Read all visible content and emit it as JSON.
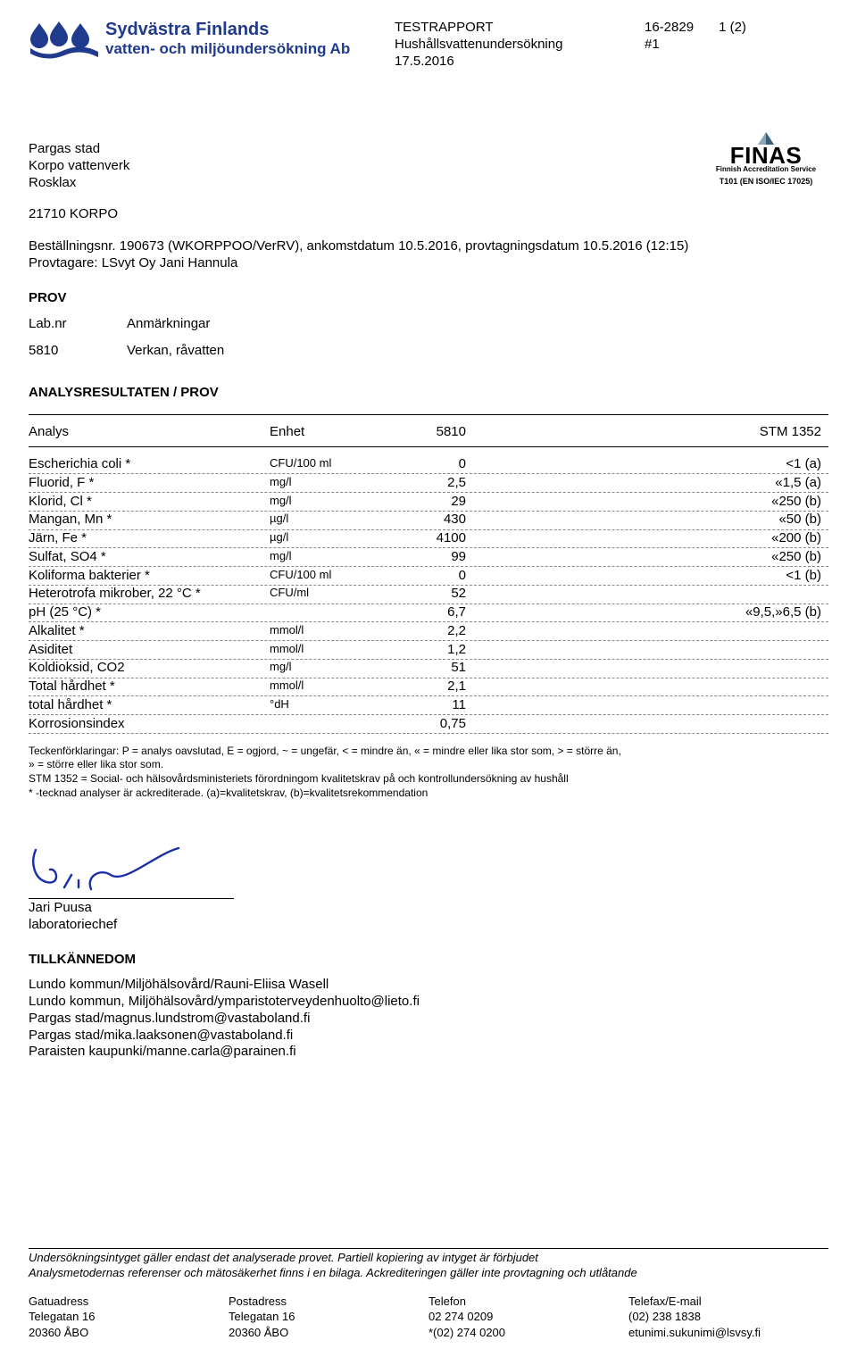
{
  "header": {
    "brand_line1": "Sydvästra Finlands",
    "brand_line2": "vatten- och miljöundersökning Ab",
    "center_line1": "TESTRAPPORT",
    "center_line2": "Hushållsvattenundersökning",
    "center_line3": "17.5.2016",
    "report_no": "16-2829",
    "sub_no": "#1",
    "page": "1 (2)"
  },
  "address": {
    "l1": "Pargas stad",
    "l2": "Korpo vattenverk",
    "l3": "Rosklax",
    "code": "21710 KORPO"
  },
  "finas": {
    "word": "FINAS",
    "sub": "Finnish Accreditation Service",
    "code": "T101 (EN ISO/IEC 17025)"
  },
  "order": {
    "line1": "Beställningsnr. 190673 (WKORPPOO/VerRV), ankomstdatum 10.5.2016, provtagningsdatum 10.5.2016 (12:15)",
    "line2": "Provtagare: LSvyt Oy Jani Hannula"
  },
  "prov": {
    "title": "PROV",
    "col1": "Lab.nr",
    "col2": "Anmärkningar",
    "row_labnr": "5810",
    "row_anm": "Verkan, råvatten"
  },
  "results": {
    "title": "ANALYSRESULTATEN / PROV",
    "head": {
      "analys": "Analys",
      "enhet": "Enhet",
      "val": "5810",
      "stm": "STM 1352"
    },
    "rows": [
      {
        "a": "Escherichia coli *",
        "e": "CFU/100 ml",
        "v": "0",
        "s": "<1 (a)"
      },
      {
        "a": "Fluorid, F *",
        "e": "mg/l",
        "v": "2,5",
        "s": "«1,5 (a)"
      },
      {
        "a": "Klorid, Cl *",
        "e": "mg/l",
        "v": "29",
        "s": "«250 (b)"
      },
      {
        "a": "Mangan, Mn *",
        "e": "µg/l",
        "v": "430",
        "s": "«50 (b)"
      },
      {
        "a": "Järn, Fe *",
        "e": "µg/l",
        "v": "4100",
        "s": "«200 (b)"
      },
      {
        "a": "Sulfat, SO4 *",
        "e": "mg/l",
        "v": "99",
        "s": "«250 (b)"
      },
      {
        "a": "Koliforma bakterier *",
        "e": "CFU/100 ml",
        "v": "0",
        "s": "<1 (b)"
      },
      {
        "a": "Heterotrofa mikrober, 22 °C *",
        "e": "CFU/ml",
        "v": "52",
        "s": ""
      },
      {
        "a": "pH (25 °C) *",
        "e": "",
        "v": "6,7",
        "s": "«9,5,»6,5 (b)"
      },
      {
        "a": "Alkalitet *",
        "e": "mmol/l",
        "v": "2,2",
        "s": ""
      },
      {
        "a": "Asiditet",
        "e": "mmol/l",
        "v": "1,2",
        "s": ""
      },
      {
        "a": "Koldioksid, CO2",
        "e": "mg/l",
        "v": "51",
        "s": ""
      },
      {
        "a": "Total hårdhet *",
        "e": "mmol/l",
        "v": "2,1",
        "s": ""
      },
      {
        "a": " total hårdhet *",
        "e": "°dH",
        "v": "11",
        "s": ""
      },
      {
        "a": "Korrosionsindex",
        "e": "",
        "v": "0,75",
        "s": ""
      }
    ]
  },
  "legend": {
    "l1": "Teckenförklaringar: P = analys oavslutad, E = ogjord, ~ = ungefär, < = mindre än, « = mindre eller lika stor som, > = större än,",
    "l2": "» = större eller lika stor som.",
    "l3": "STM 1352 = Social- och hälsovårdsministeriets förordningom kvalitetskrav på och kontrollundersökning av hushåll",
    "l4": "* -tecknad analyser är ackrediterade. (a)=kvalitetskrav, (b)=kvalitetsrekommendation"
  },
  "signature": {
    "name": "Jari Puusa",
    "title": "laboratoriechef"
  },
  "tk": {
    "title": "TILLKÄNNEDOM",
    "lines": [
      "Lundo kommun/Miljöhälsovård/Rauni-Eliisa Wasell",
      "Lundo kommun, Miljöhälsovård/ymparistoterveydenhuolto@lieto.fi",
      "Pargas stad/magnus.lundstrom@vastaboland.fi",
      "Pargas stad/mika.laaksonen@vastaboland.fi",
      "Paraisten kaupunki/manne.carla@parainen.fi"
    ]
  },
  "footer_note": {
    "l1": "Undersökningsintyget gäller endast det analyserade provet. Partiell kopiering av intyget är förbjudet",
    "l2": "Analysmetodernas referenser och mätosäkerhet finns i en bilaga. Ackrediteringen gäller inte provtagning och utlåtande"
  },
  "footer": {
    "c1": {
      "h": "Gatuadress",
      "l1": "Telegatan 16",
      "l2": "20360 ÅBO"
    },
    "c2": {
      "h": "Postadress",
      "l1": "Telegatan 16",
      "l2": "20360 ÅBO"
    },
    "c3": {
      "h": "Telefon",
      "l1": "02 274 0209",
      "l2": "*(02) 274 0200"
    },
    "c4": {
      "h": "Telefax/E-mail",
      "l1": "(02) 238 1838",
      "l2": "etunimi.sukunimi@lsvsy.fi"
    }
  }
}
